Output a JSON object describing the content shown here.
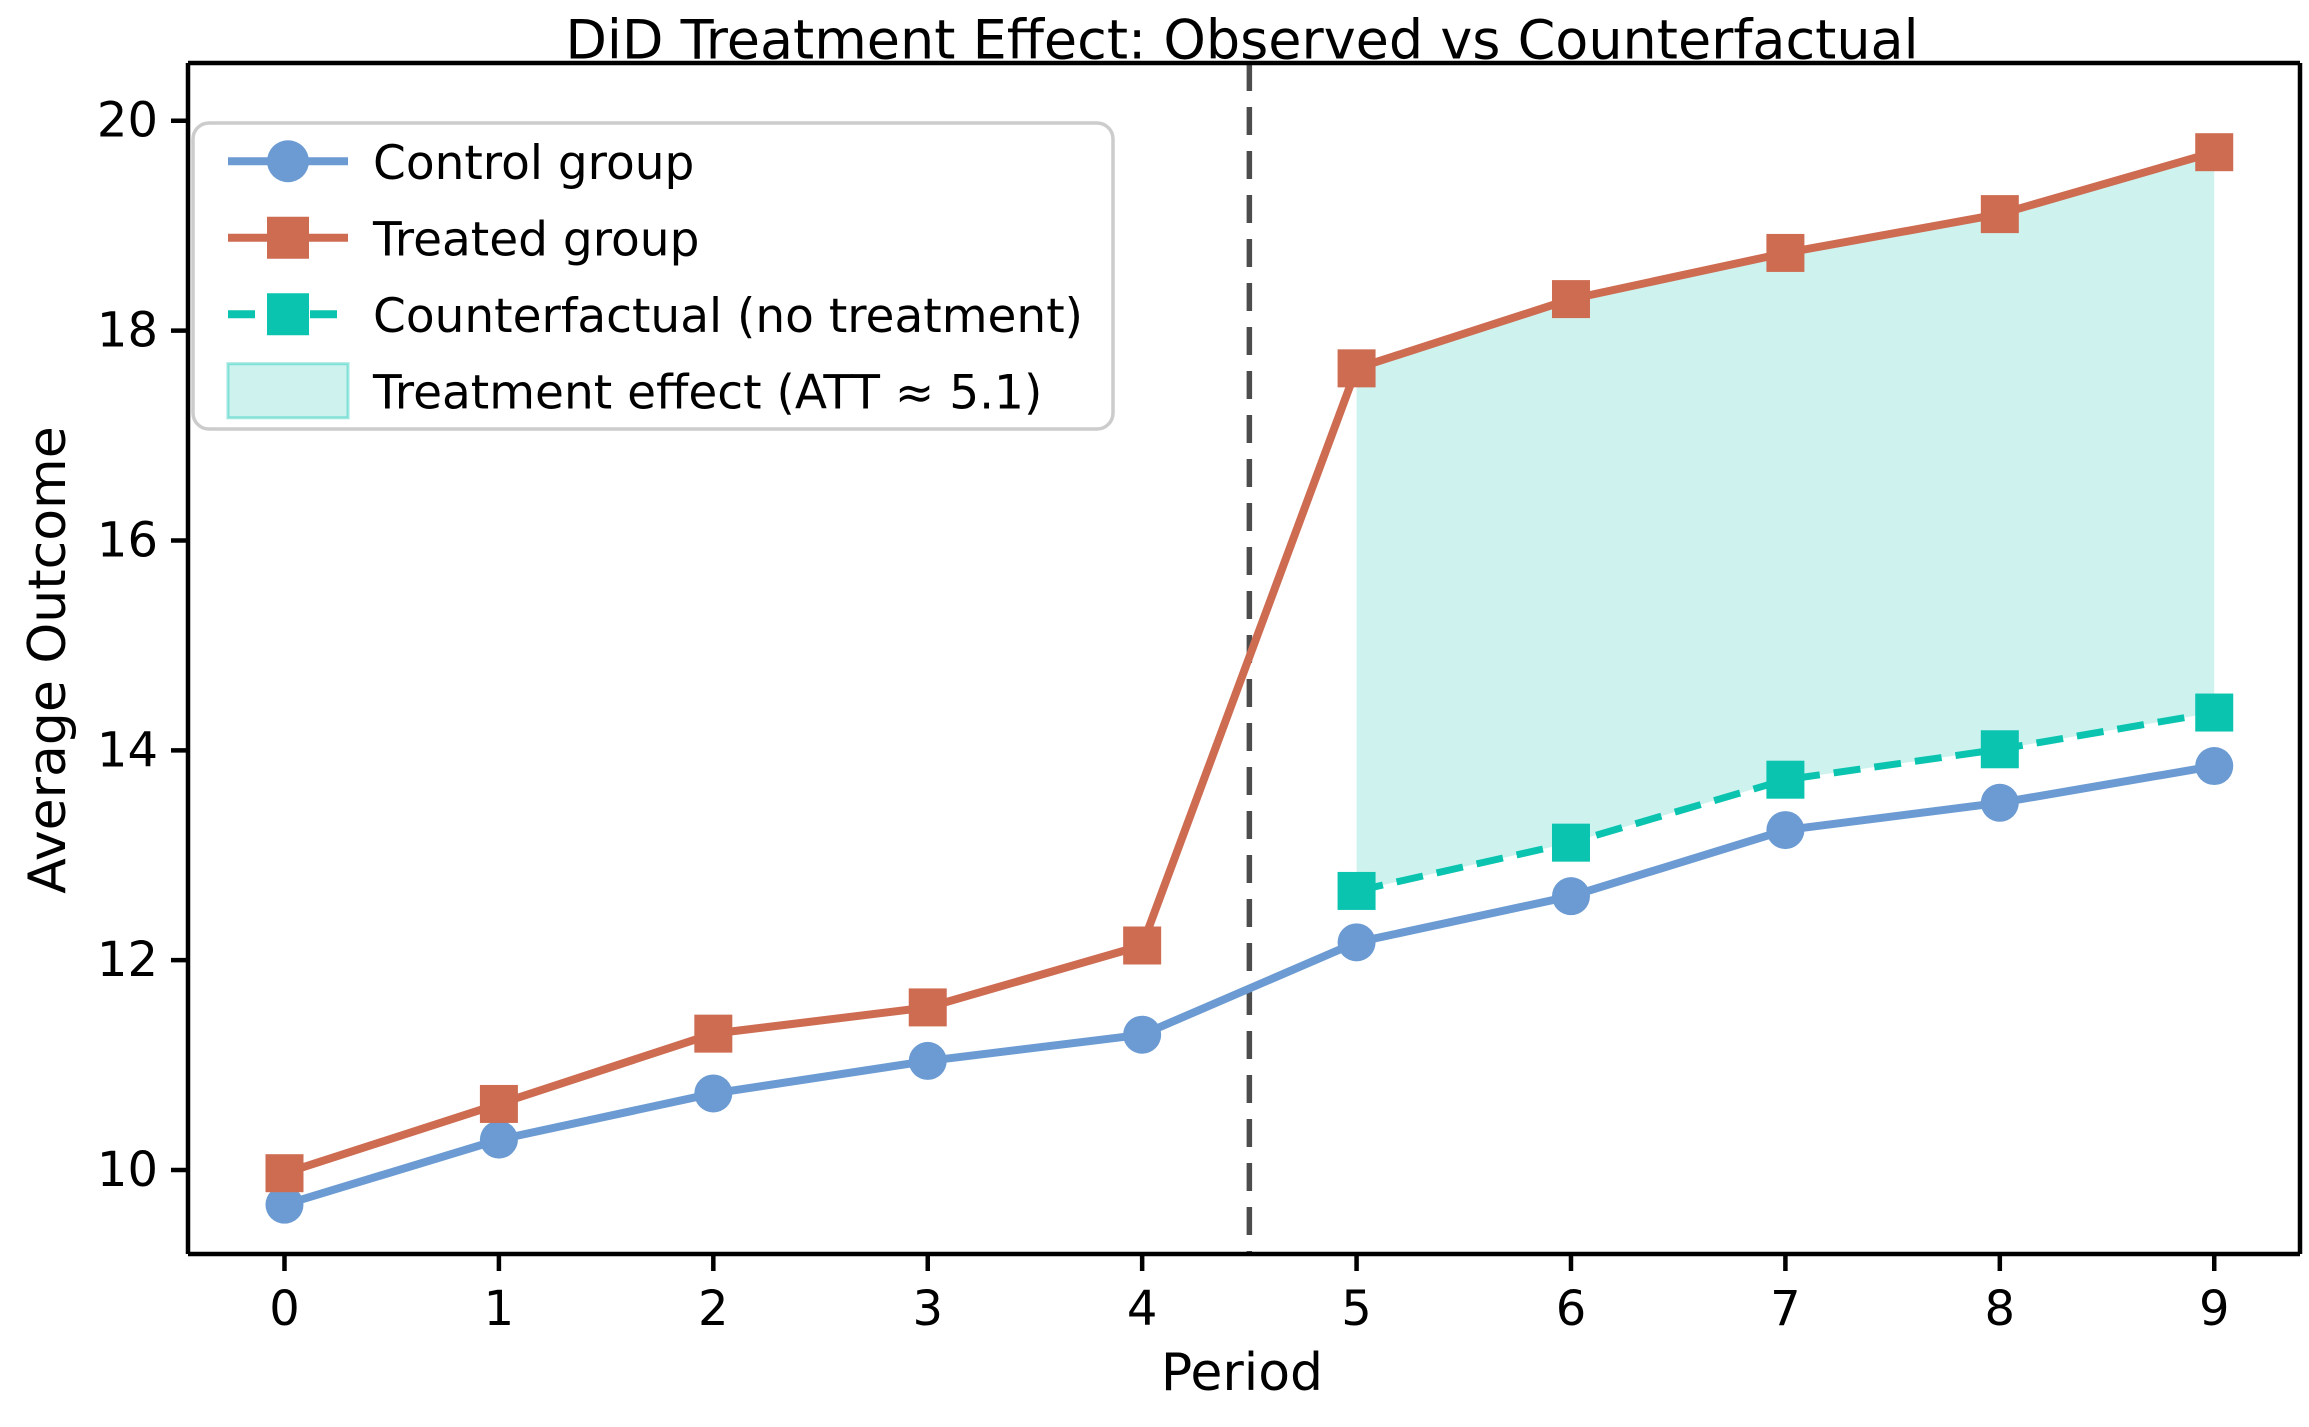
{
  "chart_data": {
    "type": "line",
    "title": "DiD Treatment Effect: Observed vs Counterfactual",
    "xlabel": "Period",
    "ylabel": "Average Outcome",
    "xlim": [
      -0.45,
      9.4
    ],
    "ylim": [
      9.2,
      20.55
    ],
    "xticks": [
      0,
      1,
      2,
      3,
      4,
      5,
      6,
      7,
      8,
      9
    ],
    "xticklabels": [
      "0",
      "1",
      "2",
      "3",
      "4",
      "5",
      "6",
      "7",
      "8",
      "9"
    ],
    "yticks": [
      10,
      12,
      14,
      16,
      18,
      20
    ],
    "yticklabels": [
      "10",
      "12",
      "14",
      "16",
      "18",
      "20"
    ],
    "grid": false,
    "legend_position": "upper-left",
    "treatment_start_line_x": 4.5,
    "att_value": "5.1",
    "series": [
      {
        "name": "Control group",
        "color": "#6B9BD2",
        "marker": "circle",
        "linestyle": "solid",
        "x": [
          0,
          1,
          2,
          3,
          4,
          5,
          6,
          7,
          8,
          9
        ],
        "values": [
          9.67,
          10.29,
          10.73,
          11.04,
          11.29,
          12.17,
          12.61,
          13.24,
          13.5,
          13.85
        ]
      },
      {
        "name": "Treated group",
        "color": "#CE6C52",
        "marker": "square",
        "linestyle": "solid",
        "x": [
          0,
          1,
          2,
          3,
          4,
          5,
          6,
          7,
          8,
          9
        ],
        "values": [
          9.97,
          10.63,
          11.3,
          11.55,
          12.14,
          17.64,
          18.3,
          18.74,
          19.11,
          19.7
        ]
      },
      {
        "name": "Counterfactual (no treatment)",
        "color": "#0AC4B0",
        "marker": "square",
        "linestyle": "dashed",
        "x": [
          5,
          6,
          7,
          8,
          9
        ],
        "values": [
          12.66,
          13.12,
          13.72,
          14.01,
          14.36
        ]
      }
    ],
    "shaded_region": {
      "label": "Treatment effect (ATT ≈ 5.1)",
      "between": [
        "Treated group",
        "Counterfactual (no treatment)"
      ],
      "x_range": [
        5,
        9
      ],
      "color": "#0AC4B0",
      "opacity": 0.2
    }
  },
  "legend": {
    "items": [
      {
        "label": "Control group",
        "swatch": "line-circle",
        "color": "#6B9BD2"
      },
      {
        "label": "Treated group",
        "swatch": "line-square",
        "color": "#CE6C52"
      },
      {
        "label": "Counterfactual (no treatment)",
        "swatch": "dashed-line-square",
        "color": "#0AC4B0"
      },
      {
        "label": "Treatment effect (ATT ≈ 5.1)",
        "swatch": "patch",
        "color": "#0AC4B0"
      }
    ]
  },
  "colors": {
    "control": "#6B9BD2",
    "treated": "#CE6C52",
    "counterfactual": "#0AC4B0",
    "treatment_line": "#4D4D4D",
    "legend_border": "#CCCCCC",
    "spine": "#000000"
  }
}
